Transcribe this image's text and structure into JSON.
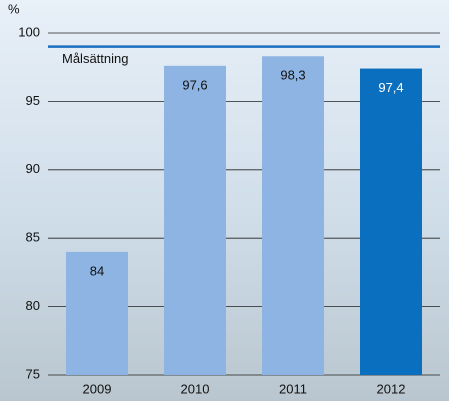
{
  "chart_data": {
    "type": "bar",
    "y_unit": "%",
    "categories": [
      "2009",
      "2010",
      "2011",
      "2012"
    ],
    "values": [
      84,
      97.6,
      98.3,
      97.4
    ],
    "value_labels": [
      "84",
      "97,6",
      "98,3",
      "97,4"
    ],
    "colors": [
      "#8db4e2",
      "#8db4e2",
      "#8db4e2",
      "#0a6fbf"
    ],
    "value_label_colors": [
      "#111111",
      "#111111",
      "#111111",
      "#ffffff"
    ],
    "target": {
      "value": 99,
      "label": "Målsättning",
      "color": "#1a6fc0"
    },
    "ylim": [
      75,
      100
    ],
    "yticks": [
      75,
      80,
      85,
      90,
      95,
      100
    ],
    "grid": true
  }
}
